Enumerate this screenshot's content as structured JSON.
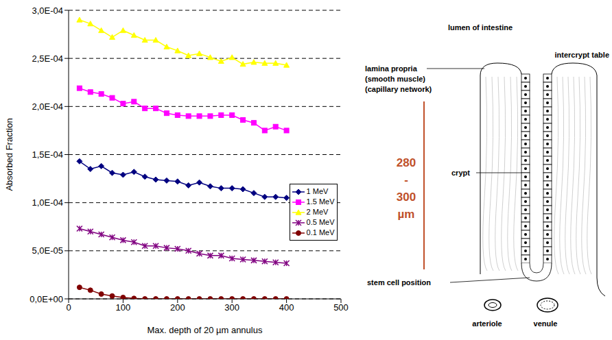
{
  "chart_data": {
    "type": "line",
    "x_label": "Max. depth of 20 µm annulus",
    "y_label": "Absorbed Fraction",
    "x": [
      20,
      40,
      60,
      80,
      100,
      120,
      140,
      160,
      180,
      200,
      220,
      240,
      260,
      280,
      300,
      320,
      340,
      360,
      380,
      400
    ],
    "series": [
      {
        "name": "1 MeV",
        "color": "#000080",
        "marker": "diamond",
        "values": [
          0.000143,
          0.000135,
          0.000138,
          0.000131,
          0.000129,
          0.000132,
          0.000127,
          0.000124,
          0.000123,
          0.000122,
          0.000118,
          0.000121,
          0.000117,
          0.000115,
          0.000115,
          0.000114,
          0.00011,
          0.000106,
          0.000106,
          0.000105
        ]
      },
      {
        "name": "1.5 MeV",
        "color": "#ff00ff",
        "marker": "square",
        "values": [
          0.000219,
          0.000215,
          0.000213,
          0.000209,
          0.000203,
          0.000205,
          0.000198,
          0.000198,
          0.000193,
          0.000191,
          0.00019,
          0.00019,
          0.00019,
          0.000191,
          0.000191,
          0.000186,
          0.000183,
          0.000175,
          0.000179,
          0.000175
        ]
      },
      {
        "name": "2 MeV",
        "color": "#ffff00",
        "marker": "triangle",
        "values": [
          0.00029,
          0.000286,
          0.000279,
          0.000272,
          0.000279,
          0.000274,
          0.000269,
          0.000269,
          0.000262,
          0.000258,
          0.000253,
          0.000255,
          0.000251,
          0.000247,
          0.000251,
          0.000244,
          0.000246,
          0.000245,
          0.000245,
          0.000243
        ]
      },
      {
        "name": "0.5 MeV",
        "color": "#800080",
        "marker": "x",
        "values": [
          7.3e-05,
          7e-05,
          6.7e-05,
          6.4e-05,
          6.1e-05,
          5.9e-05,
          5.5e-05,
          5.5e-05,
          5.3e-05,
          5.2e-05,
          5e-05,
          4.7e-05,
          4.5e-05,
          4.5e-05,
          4.2e-05,
          4.1e-05,
          4e-05,
          3.9e-05,
          3.8e-05,
          3.7e-05
        ]
      },
      {
        "name": "0.1 MeV",
        "color": "#800000",
        "marker": "circle",
        "values": [
          1.2e-05,
          9e-06,
          5e-06,
          3e-06,
          1.5e-06,
          5e-07,
          0,
          0,
          0,
          0,
          0,
          0,
          0,
          0,
          0,
          0,
          0,
          0,
          0,
          0
        ]
      }
    ],
    "xlim": [
      0,
      500
    ],
    "xticks": [
      0,
      100,
      200,
      300,
      400,
      500
    ],
    "ylim": [
      0,
      0.0003
    ],
    "yticks": [
      {
        "value": 0,
        "label": "0,0E+00"
      },
      {
        "value": 5e-05,
        "label": "5,0E-05"
      },
      {
        "value": 0.0001,
        "label": "1,0E-04"
      },
      {
        "value": 0.00015,
        "label": "1,5E-04"
      },
      {
        "value": 0.0002,
        "label": "2,0E-04"
      },
      {
        "value": 0.00025,
        "label": "2,5E-04"
      },
      {
        "value": 0.0003,
        "label": "3,0E-04"
      }
    ],
    "grid": "y",
    "legend": "right"
  },
  "diagram": {
    "lumen": "lumen of intestine",
    "intercrypt_table": "intercrypt table",
    "lamina_propria": [
      "lamina propria",
      "(smooth muscle)",
      "(capillary network)"
    ],
    "depth": [
      "280",
      "-",
      "300",
      "µm"
    ],
    "crypt": "crypt",
    "stem_cell": "stem cell position",
    "vessels": [
      "arteriole",
      "venule"
    ]
  }
}
